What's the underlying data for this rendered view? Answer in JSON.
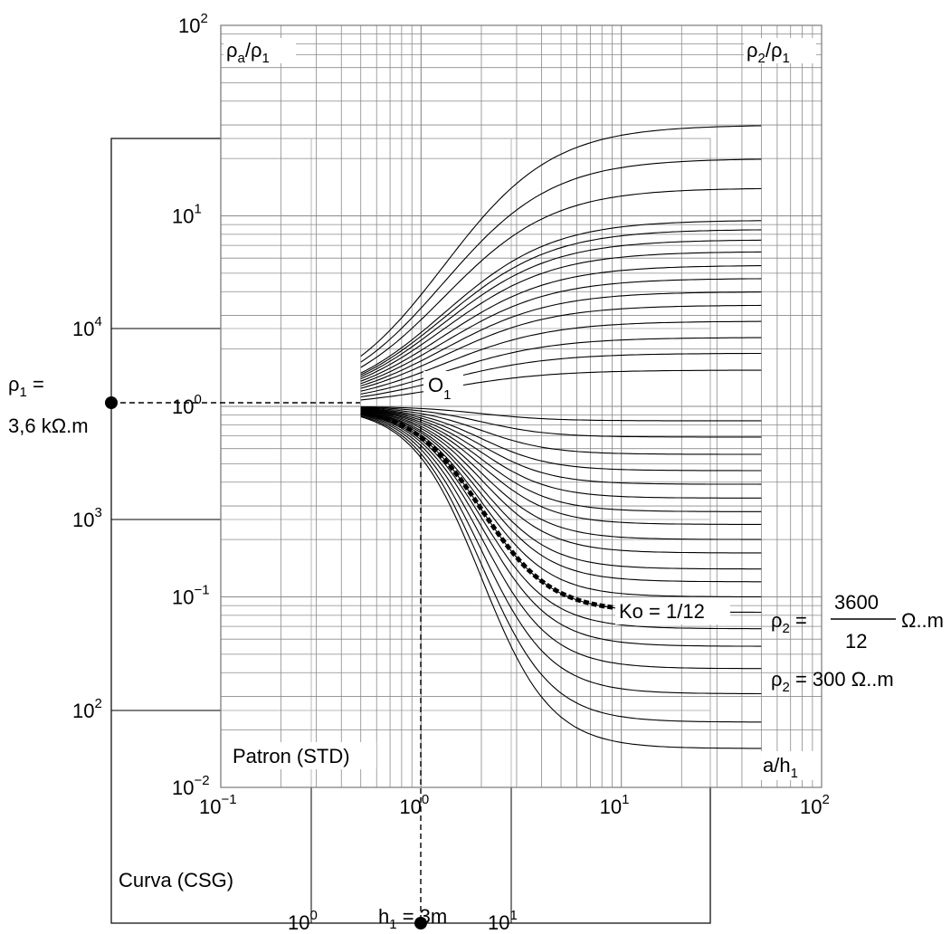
{
  "chart_data": [
    {
      "type": "line",
      "name_label": "Patron (STD)",
      "x_label": "a/h",
      "x_label_sub": "1",
      "y_left_label": "ρ",
      "y_left_label_sub1": "a",
      "y_left_label_mid": "/ρ",
      "y_left_label_sub2": "1",
      "y_right_label": "ρ",
      "y_right_label_sub1": "2",
      "y_right_label_mid": "/ρ",
      "y_right_label_sub2": "1",
      "x_scale": "log",
      "y_scale": "log",
      "xlim": [
        0.1,
        100
      ],
      "ylim": [
        0.01,
        100
      ],
      "x_ticks": [
        {
          "base": "10",
          "exp": "−1"
        },
        {
          "base": "10",
          "exp": "0"
        },
        {
          "base": "10",
          "exp": "1"
        },
        {
          "base": "10",
          "exp": "2"
        }
      ],
      "y_ticks": [
        {
          "base": "10",
          "exp": "−2"
        },
        {
          "base": "10",
          "exp": "−1"
        },
        {
          "base": "10",
          "exp": "0"
        },
        {
          "base": "10",
          "exp": "1"
        },
        {
          "base": "10",
          "exp": "2"
        }
      ],
      "grid": true,
      "series_asymptotes": [
        30,
        20,
        14,
        9.5,
        8.5,
        7.5,
        6.5,
        5.5,
        4.7,
        4.0,
        3.4,
        2.8,
        2.3,
        1.9,
        1.55,
        0.84,
        0.69,
        0.56,
        0.46,
        0.39,
        0.33,
        0.28,
        0.24,
        0.2,
        0.17,
        0.14,
        0.12,
        0.1,
        0.083,
        0.068,
        0.055,
        0.042,
        0.031,
        0.022,
        0.016
      ],
      "highlighted_curve": {
        "k": 0.0833,
        "label": "Ko = 1/12"
      },
      "origin_label": "O",
      "origin_label_sub": "1"
    },
    {
      "type": "line",
      "name_label": "Curva (CSG)",
      "x_scale": "log",
      "y_scale": "log",
      "xlim": [
        0.3,
        30
      ],
      "ylim": [
        70,
        20000
      ],
      "x_ticks": [
        {
          "base": "10",
          "exp": "0"
        },
        {
          "base": "10",
          "exp": "1"
        }
      ],
      "y_ticks": [
        {
          "base": "10",
          "exp": "2"
        },
        {
          "base": "10",
          "exp": "3"
        },
        {
          "base": "10",
          "exp": "4"
        }
      ],
      "grid": true
    }
  ],
  "annotations": {
    "rho1_label": "ρ",
    "rho1_sub": "1",
    "rho1_eq": " =",
    "rho1_value": "3,6 kΩ.m",
    "h1_label": "h",
    "h1_sub": "1",
    "h1_value": " = 3m",
    "rho2_fraction_label": "ρ",
    "rho2_fraction_sub": "2",
    "rho2_fraction_eq": " =",
    "rho2_fraction_num": "3600",
    "rho2_fraction_den": "12",
    "rho2_fraction_unit": "Ω..m",
    "rho2_value_label": "ρ",
    "rho2_value_sub": "2",
    "rho2_value_text": " = 300 Ω..m"
  }
}
